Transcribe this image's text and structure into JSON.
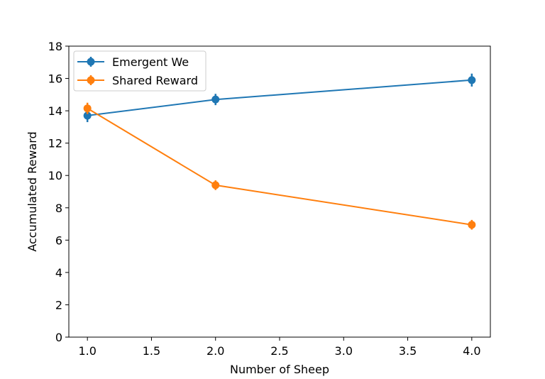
{
  "chart_data": {
    "type": "line",
    "title": "",
    "xlabel": "Number of Sheep",
    "ylabel": "Accumulated Reward",
    "xlim": [
      0.855,
      4.145
    ],
    "ylim": [
      0,
      18
    ],
    "xticks": [
      1.0,
      1.5,
      2.0,
      2.5,
      3.0,
      3.5,
      4.0
    ],
    "yticks": [
      0,
      2,
      4,
      6,
      8,
      10,
      12,
      14,
      16,
      18
    ],
    "grid": false,
    "legend_position": "upper-left",
    "series": [
      {
        "name": "Emergent We",
        "color": "#1f77b4",
        "x": [
          1,
          2,
          4
        ],
        "y": [
          13.7,
          14.7,
          15.9
        ],
        "yerr": [
          0.4,
          0.35,
          0.4
        ]
      },
      {
        "name": "Shared Reward",
        "color": "#ff7f0e",
        "x": [
          1,
          2,
          4
        ],
        "y": [
          14.15,
          9.4,
          6.95
        ],
        "yerr": [
          0.35,
          0.3,
          0.3
        ]
      }
    ]
  }
}
